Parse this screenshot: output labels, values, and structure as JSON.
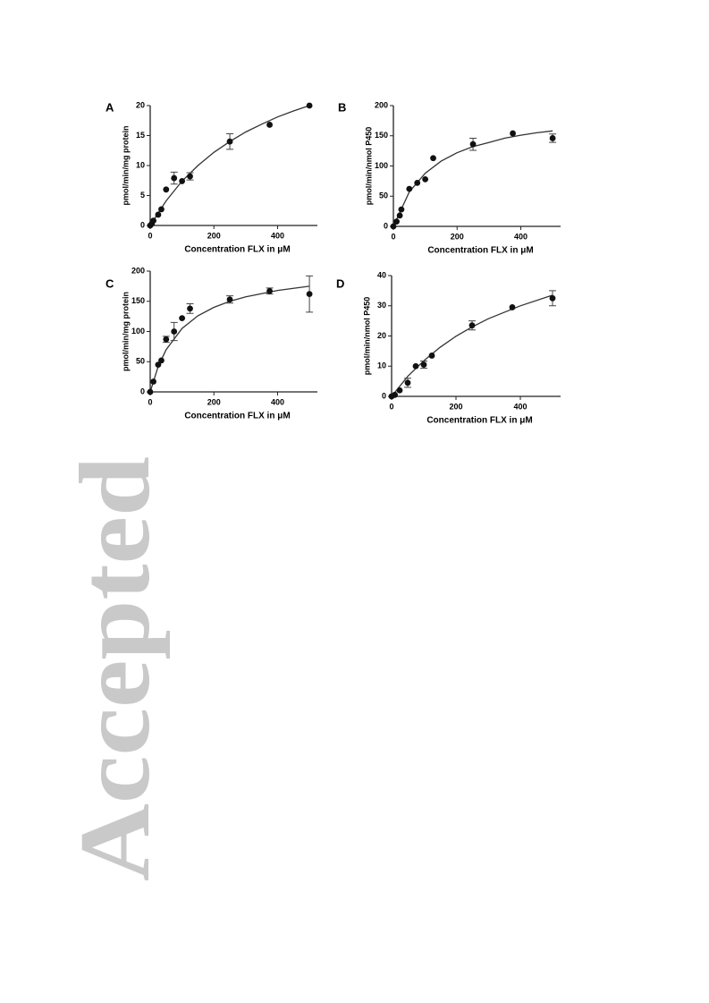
{
  "watermark": "Accepted",
  "chart_data": [
    {
      "type": "scatter",
      "panel": "A",
      "y_label": "pmol/min/mg protein",
      "x_label": "Concentration  FLX in μM",
      "xlim": [
        0,
        525
      ],
      "xticks": [
        0,
        200,
        400
      ],
      "ylim": [
        0,
        20
      ],
      "yticks": [
        0,
        5,
        10,
        15,
        20
      ],
      "x": [
        0,
        5,
        10,
        25,
        35,
        50,
        75,
        100,
        125,
        250,
        375,
        500
      ],
      "values": [
        0,
        0.3,
        0.8,
        1.8,
        2.7,
        6,
        7.9,
        7.4,
        8.2,
        14,
        16.8,
        20
      ],
      "errors": [
        null,
        null,
        null,
        null,
        null,
        null,
        1,
        null,
        0.6,
        1.3,
        null,
        null
      ],
      "fit": {
        "x": [
          0,
          50,
          100,
          150,
          200,
          250,
          300,
          350,
          400,
          450,
          500
        ],
        "values": [
          0,
          4.1,
          7.4,
          10,
          12.2,
          14,
          15.6,
          16.9,
          18.1,
          19.1,
          20
        ]
      },
      "color": "#111111"
    },
    {
      "type": "scatter",
      "panel": "B",
      "y_label": "pmol/min/nmol P450",
      "x_label": "Concentration  FLX in μM",
      "xlim": [
        0,
        525
      ],
      "xticks": [
        0,
        200,
        400
      ],
      "ylim": [
        0,
        200
      ],
      "yticks": [
        0,
        50,
        100,
        150,
        200
      ],
      "x": [
        0,
        10,
        20,
        25,
        50,
        75,
        100,
        125,
        250,
        375,
        500
      ],
      "values": [
        0,
        8,
        18,
        28,
        62,
        72,
        78,
        113,
        136,
        154,
        146
      ],
      "errors": [
        null,
        null,
        null,
        null,
        null,
        null,
        null,
        null,
        10,
        null,
        7
      ],
      "fit": {
        "x": [
          0,
          50,
          100,
          150,
          200,
          250,
          300,
          350,
          400,
          450,
          500
        ],
        "values": [
          0,
          57,
          88,
          108,
          122,
          132,
          139,
          146,
          151,
          155,
          158
        ]
      },
      "color": "#111111"
    },
    {
      "type": "scatter",
      "panel": "C",
      "y_label": "pmol/min/mg protein",
      "x_label": "Concentration  FLX in μM",
      "xlim": [
        0,
        525
      ],
      "xticks": [
        0,
        200,
        400
      ],
      "ylim": [
        0,
        200
      ],
      "yticks": [
        0,
        50,
        100,
        150,
        200
      ],
      "x": [
        0,
        10,
        25,
        35,
        50,
        75,
        100,
        125,
        250,
        375,
        500
      ],
      "values": [
        0,
        17,
        45,
        52,
        87,
        100,
        122,
        138,
        153,
        167,
        162
      ],
      "errors": [
        null,
        null,
        null,
        null,
        5,
        15,
        null,
        8,
        6,
        5,
        30
      ],
      "fit": {
        "x": [
          0,
          25,
          50,
          100,
          150,
          200,
          250,
          300,
          400,
          500
        ],
        "values": [
          0,
          42,
          70,
          105,
          126,
          140,
          150,
          157.5,
          168,
          175
        ]
      },
      "color": "#111111"
    },
    {
      "type": "scatter",
      "panel": "D",
      "y_label": "pmol/min/nmol P450",
      "x_label": "Concentration FLX in μM",
      "xlim": [
        0,
        525
      ],
      "xticks": [
        0,
        200,
        400
      ],
      "ylim": [
        0,
        40
      ],
      "yticks": [
        0,
        10,
        20,
        30,
        40
      ],
      "x": [
        0,
        10,
        25,
        50,
        75,
        100,
        125,
        250,
        375,
        500
      ],
      "values": [
        0,
        0.5,
        2,
        4.5,
        10,
        10.5,
        13.5,
        23.5,
        29.5,
        32.5
      ],
      "errors": [
        null,
        null,
        null,
        1.5,
        null,
        1.2,
        null,
        1.5,
        null,
        2.5
      ],
      "fit": {
        "x": [
          0,
          50,
          100,
          150,
          200,
          250,
          300,
          400,
          500
        ],
        "values": [
          0,
          6.6,
          11.8,
          16.2,
          19.9,
          23,
          25.7,
          30,
          33.5
        ]
      },
      "color": "#111111"
    }
  ]
}
